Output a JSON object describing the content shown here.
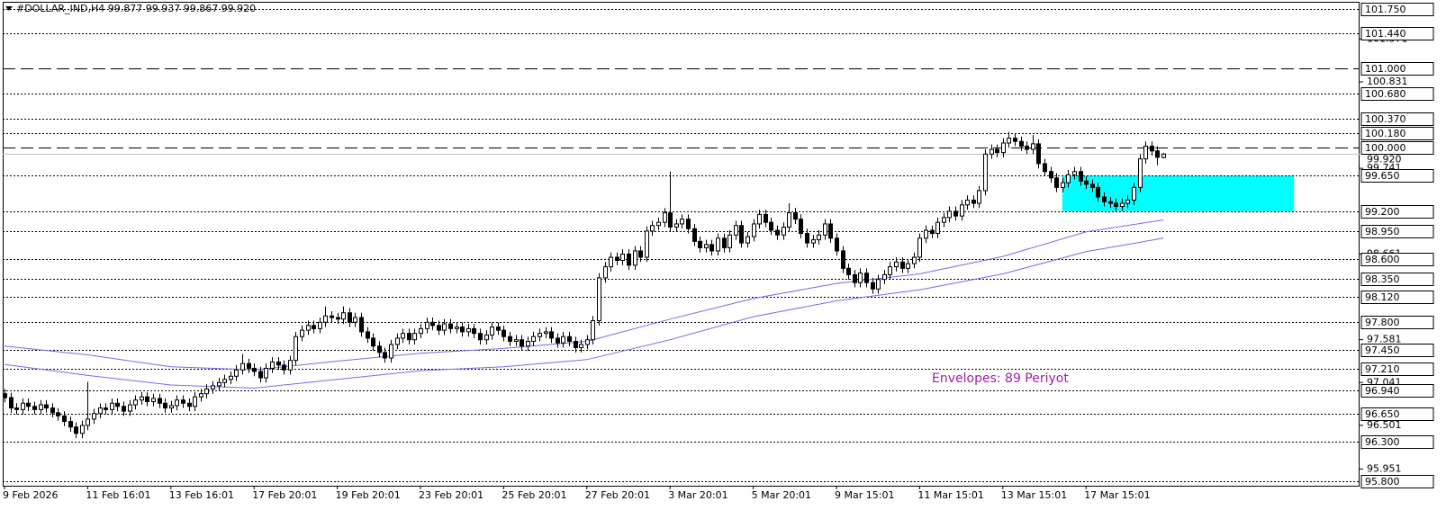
{
  "chart_data": {
    "type": "candlestick",
    "title": "#DOLLAR_IND,H4  99.877 99.937 99.867 99.920",
    "annotation": "Envelopes: 89 Periyot",
    "categories": [
      "9 Feb 2026",
      null,
      null,
      null,
      null,
      null,
      null,
      null,
      null,
      null,
      null,
      null,
      null,
      null,
      "11 Feb 16:01",
      null,
      null,
      null,
      null,
      null,
      null,
      null,
      null,
      null,
      null,
      null,
      null,
      null,
      "13 Feb 16:01",
      null,
      null,
      null,
      null,
      null,
      null,
      null,
      null,
      null,
      null,
      null,
      null,
      null,
      "17 Feb 20:01",
      null,
      null,
      null,
      null,
      null,
      null,
      null,
      null,
      null,
      null,
      null,
      null,
      null,
      "19 Feb 20:01",
      null,
      null,
      null,
      null,
      null,
      null,
      null,
      null,
      null,
      null,
      null,
      null,
      null,
      "23 Feb 20:01",
      null,
      null,
      null,
      null,
      null,
      null,
      null,
      null,
      null,
      null,
      null,
      null,
      null,
      "25 Feb 20:01",
      null,
      null,
      null,
      null,
      null,
      null,
      null,
      null,
      null,
      null,
      null,
      null,
      null,
      "27 Feb 20:01",
      null,
      null,
      null,
      null,
      null,
      null,
      null,
      null,
      null,
      null,
      null,
      null,
      null,
      "3 Mar 20:01",
      null,
      null,
      null,
      null,
      null,
      null,
      null,
      null,
      null,
      null,
      null,
      null,
      null,
      "5 Mar 20:01",
      null,
      null,
      null,
      null,
      null,
      null,
      null,
      null,
      null,
      null,
      null,
      null,
      null,
      "9 Mar 15:01",
      null,
      null,
      null,
      null,
      null,
      null,
      null,
      null,
      null,
      null,
      null,
      null,
      null,
      "11 Mar 15:01",
      null,
      null,
      null,
      null,
      null,
      null,
      null,
      null,
      null,
      null,
      null,
      null,
      null,
      "13 Mar 15:01",
      null,
      null,
      null,
      null,
      null,
      null,
      null,
      null,
      null,
      null,
      null,
      null,
      null,
      "17 Mar 15:01",
      null,
      null,
      null,
      null,
      null,
      null,
      null,
      null,
      null,
      null,
      null,
      null,
      null
    ],
    "open": [
      96.9,
      96.85,
      96.72,
      96.7,
      96.78,
      96.74,
      96.7,
      96.76,
      96.72,
      96.66,
      96.62,
      96.55,
      96.48,
      96.4,
      96.5,
      96.58,
      96.65,
      96.72,
      96.7,
      96.78,
      96.74,
      96.68,
      96.76,
      96.82,
      96.86,
      96.8,
      96.84,
      96.78,
      96.72,
      96.75,
      96.82,
      96.78,
      96.74,
      96.86,
      96.9,
      96.96,
      97.0,
      97.04,
      97.08,
      97.12,
      97.2,
      97.28,
      97.22,
      97.18,
      97.1,
      97.22,
      97.3,
      97.26,
      97.2,
      97.32,
      97.62,
      97.7,
      97.76,
      97.72,
      97.8,
      97.88,
      97.86,
      97.84,
      97.92,
      97.8,
      97.86,
      97.68,
      97.6,
      97.5,
      97.42,
      97.35,
      97.52,
      97.6,
      97.66,
      97.58,
      97.66,
      97.72,
      97.8,
      97.76,
      97.7,
      97.78,
      97.72,
      97.74,
      97.68,
      97.72,
      97.66,
      97.58,
      97.64,
      97.74,
      97.7,
      97.62,
      97.56,
      97.58,
      97.5,
      97.56,
      97.62,
      97.66,
      97.68,
      97.6,
      97.54,
      97.62,
      97.56,
      97.48,
      97.52,
      97.58,
      97.82,
      98.36,
      98.5,
      98.62,
      98.58,
      98.66,
      98.52,
      98.7,
      98.62,
      98.95,
      99.02,
      99.06,
      99.18,
      99.0,
      99.04,
      99.1,
      98.98,
      98.82,
      98.74,
      98.78,
      98.7,
      98.86,
      98.74,
      98.9,
      99.02,
      98.8,
      98.88,
      99.04,
      99.16,
      99.06,
      98.96,
      98.9,
      99.0,
      99.18,
      99.1,
      98.92,
      98.8,
      98.84,
      98.9,
      99.04,
      98.86,
      98.7,
      98.48,
      98.4,
      98.3,
      98.42,
      98.3,
      98.22,
      98.34,
      98.4,
      98.5,
      98.56,
      98.48,
      98.54,
      98.62,
      98.86,
      98.96,
      98.92,
      99.06,
      99.12,
      99.2,
      99.14,
      99.28,
      99.34,
      99.3,
      99.46,
      99.92,
      99.98,
      99.94,
      100.06,
      100.12,
      100.08,
      100.02,
      99.98,
      100.05,
      99.8,
      99.7,
      99.62,
      99.5,
      99.56,
      99.66,
      99.7,
      99.58,
      99.54,
      99.5,
      99.38,
      99.32,
      99.3,
      99.26,
      99.3,
      99.34,
      99.5,
      99.86,
      100.02,
      99.96,
      99.877
    ],
    "high": [
      96.96,
      96.91,
      96.78,
      96.84,
      96.84,
      96.8,
      96.82,
      96.82,
      96.78,
      96.72,
      96.68,
      96.61,
      96.54,
      96.56,
      97.05,
      96.71,
      96.78,
      96.78,
      96.84,
      96.84,
      96.8,
      96.82,
      96.88,
      96.92,
      96.92,
      96.9,
      96.9,
      96.84,
      96.81,
      96.88,
      96.88,
      96.84,
      96.92,
      96.96,
      97.02,
      97.06,
      97.1,
      97.14,
      97.18,
      97.26,
      97.4,
      97.34,
      97.28,
      97.24,
      97.28,
      97.36,
      97.36,
      97.32,
      97.38,
      97.68,
      97.76,
      97.82,
      97.82,
      97.86,
      98.0,
      97.94,
      97.92,
      98.0,
      97.98,
      97.92,
      97.92,
      97.74,
      97.66,
      97.56,
      97.48,
      97.58,
      97.66,
      97.72,
      97.72,
      97.72,
      97.78,
      97.86,
      97.86,
      97.82,
      97.84,
      97.84,
      97.8,
      97.8,
      97.78,
      97.78,
      97.72,
      97.7,
      97.8,
      97.8,
      97.76,
      97.68,
      97.64,
      97.64,
      97.62,
      97.68,
      97.72,
      97.74,
      97.74,
      97.66,
      97.68,
      97.68,
      97.62,
      97.58,
      97.64,
      97.88,
      98.42,
      98.56,
      98.68,
      98.68,
      98.72,
      98.72,
      98.76,
      98.76,
      99.01,
      99.08,
      99.12,
      99.24,
      99.7,
      99.1,
      99.16,
      99.16,
      99.04,
      98.88,
      98.84,
      98.84,
      98.92,
      98.92,
      98.96,
      99.08,
      99.08,
      98.94,
      99.1,
      99.22,
      99.22,
      99.12,
      99.02,
      99.06,
      99.3,
      99.24,
      99.16,
      98.98,
      98.9,
      98.96,
      99.1,
      99.1,
      98.92,
      98.76,
      98.54,
      98.46,
      98.48,
      98.48,
      98.36,
      98.4,
      98.46,
      98.56,
      98.62,
      98.62,
      98.6,
      98.68,
      98.92,
      99.02,
      99.02,
      99.12,
      99.18,
      99.26,
      99.26,
      99.34,
      99.4,
      99.4,
      99.52,
      99.98,
      100.04,
      100.04,
      100.12,
      100.2,
      100.18,
      100.14,
      100.08,
      100.16,
      100.11,
      99.86,
      99.76,
      99.68,
      99.62,
      99.72,
      99.76,
      99.76,
      99.64,
      99.6,
      99.56,
      99.44,
      99.38,
      99.36,
      99.36,
      99.4,
      99.56,
      99.92,
      100.08,
      100.08,
      100.02,
      99.937
    ],
    "low": [
      96.79,
      96.66,
      96.64,
      96.64,
      96.68,
      96.64,
      96.64,
      96.66,
      96.6,
      96.56,
      96.49,
      96.42,
      96.34,
      96.34,
      96.44,
      96.52,
      96.59,
      96.64,
      96.64,
      96.68,
      96.62,
      96.62,
      96.7,
      96.76,
      96.74,
      96.74,
      96.72,
      96.66,
      96.66,
      96.69,
      96.72,
      96.68,
      96.68,
      96.8,
      96.84,
      96.9,
      96.94,
      96.98,
      97.02,
      97.06,
      97.14,
      97.16,
      97.12,
      97.04,
      97.04,
      97.16,
      97.2,
      97.14,
      97.14,
      97.26,
      97.56,
      97.64,
      97.66,
      97.66,
      97.74,
      97.8,
      97.78,
      97.78,
      97.74,
      97.74,
      97.62,
      97.54,
      97.44,
      97.36,
      97.29,
      97.29,
      97.46,
      97.54,
      97.52,
      97.52,
      97.6,
      97.66,
      97.7,
      97.64,
      97.64,
      97.66,
      97.66,
      97.62,
      97.62,
      97.6,
      97.52,
      97.52,
      97.58,
      97.64,
      97.56,
      97.5,
      97.5,
      97.44,
      97.44,
      97.5,
      97.56,
      97.6,
      97.54,
      97.48,
      97.48,
      97.5,
      97.42,
      97.42,
      97.46,
      97.52,
      97.76,
      98.3,
      98.44,
      98.52,
      98.52,
      98.46,
      98.46,
      98.56,
      98.56,
      98.89,
      98.96,
      99.0,
      98.94,
      98.94,
      98.98,
      98.92,
      98.76,
      98.68,
      98.68,
      98.64,
      98.64,
      98.68,
      98.68,
      98.84,
      98.74,
      98.74,
      98.82,
      98.98,
      99.0,
      98.9,
      98.84,
      98.84,
      98.94,
      99.04,
      98.86,
      98.74,
      98.74,
      98.78,
      98.84,
      98.8,
      98.64,
      98.42,
      98.34,
      98.24,
      98.24,
      98.24,
      98.16,
      98.16,
      98.28,
      98.34,
      98.44,
      98.42,
      98.42,
      98.48,
      98.56,
      98.8,
      98.86,
      98.86,
      99.0,
      99.06,
      99.08,
      99.08,
      99.22,
      99.24,
      99.24,
      99.4,
      99.86,
      99.88,
      99.88,
      100.0,
      100.02,
      99.96,
      99.92,
      99.92,
      99.74,
      99.64,
      99.56,
      99.44,
      99.44,
      99.5,
      99.6,
      99.52,
      99.48,
      99.44,
      99.32,
      99.26,
      99.24,
      99.2,
      99.2,
      99.24,
      99.28,
      99.44,
      99.8,
      99.9,
      99.78,
      99.867
    ],
    "close": [
      96.85,
      96.72,
      96.7,
      96.78,
      96.74,
      96.7,
      96.76,
      96.72,
      96.66,
      96.62,
      96.55,
      96.48,
      96.4,
      96.5,
      96.58,
      96.65,
      96.72,
      96.7,
      96.78,
      96.74,
      96.68,
      96.76,
      96.82,
      96.86,
      96.8,
      96.84,
      96.78,
      96.72,
      96.75,
      96.82,
      96.78,
      96.74,
      96.86,
      96.9,
      96.96,
      97.0,
      97.04,
      97.08,
      97.12,
      97.2,
      97.28,
      97.22,
      97.18,
      97.1,
      97.22,
      97.3,
      97.26,
      97.2,
      97.32,
      97.62,
      97.7,
      97.76,
      97.72,
      97.8,
      97.88,
      97.86,
      97.84,
      97.92,
      97.8,
      97.86,
      97.68,
      97.6,
      97.5,
      97.42,
      97.35,
      97.52,
      97.6,
      97.66,
      97.58,
      97.66,
      97.72,
      97.8,
      97.76,
      97.7,
      97.78,
      97.72,
      97.74,
      97.68,
      97.72,
      97.66,
      97.58,
      97.64,
      97.74,
      97.7,
      97.62,
      97.56,
      97.58,
      97.5,
      97.56,
      97.62,
      97.66,
      97.68,
      97.6,
      97.54,
      97.62,
      97.56,
      97.48,
      97.52,
      97.58,
      97.82,
      98.36,
      98.5,
      98.62,
      98.58,
      98.66,
      98.52,
      98.7,
      98.62,
      98.95,
      99.02,
      99.06,
      99.18,
      99.0,
      99.04,
      99.1,
      98.98,
      98.82,
      98.74,
      98.78,
      98.7,
      98.86,
      98.74,
      98.9,
      99.02,
      98.8,
      98.88,
      99.04,
      99.16,
      99.06,
      98.96,
      98.9,
      99.0,
      99.18,
      99.1,
      98.92,
      98.8,
      98.84,
      98.9,
      99.04,
      98.86,
      98.7,
      98.48,
      98.4,
      98.3,
      98.42,
      98.3,
      98.22,
      98.34,
      98.4,
      98.5,
      98.56,
      98.48,
      98.54,
      98.62,
      98.86,
      98.96,
      98.92,
      99.06,
      99.12,
      99.2,
      99.14,
      99.28,
      99.34,
      99.3,
      99.46,
      99.92,
      99.98,
      99.94,
      100.06,
      100.12,
      100.08,
      100.02,
      99.98,
      100.05,
      99.8,
      99.7,
      99.62,
      99.5,
      99.56,
      99.66,
      99.7,
      99.58,
      99.54,
      99.5,
      99.38,
      99.32,
      99.3,
      99.26,
      99.3,
      99.34,
      99.5,
      99.86,
      100.02,
      99.96,
      99.88,
      99.92
    ],
    "up_color": "#ffffff",
    "down_color": "#000000",
    "ylim": [
      95.74,
      101.84
    ],
    "yticks": [
      101.371,
      100.831,
      99.741,
      98.661,
      97.581,
      97.041,
      96.501,
      95.951
    ],
    "levels": [
      {
        "value": 101.75,
        "label": "101.750",
        "style": "dot"
      },
      {
        "value": 101.44,
        "label": "101.440",
        "style": "dot"
      },
      {
        "value": 101.0,
        "label": "101.000",
        "style": "dash"
      },
      {
        "value": 100.68,
        "label": "100.680",
        "style": "dot"
      },
      {
        "value": 100.37,
        "label": "100.370",
        "style": "dot"
      },
      {
        "value": 100.18,
        "label": "100.180",
        "style": "dot"
      },
      {
        "value": 100.0,
        "label": "100.000",
        "style": "dash"
      },
      {
        "value": 99.65,
        "label": "99.650",
        "style": "dot"
      },
      {
        "value": 99.2,
        "label": "99.200",
        "style": "dot"
      },
      {
        "value": 98.95,
        "label": "98.950",
        "style": "dot"
      },
      {
        "value": 98.6,
        "label": "98.600",
        "style": "dot"
      },
      {
        "value": 98.35,
        "label": "98.350",
        "style": "dot"
      },
      {
        "value": 98.12,
        "label": "98.120",
        "style": "dot"
      },
      {
        "value": 97.8,
        "label": "97.800",
        "style": "dot"
      },
      {
        "value": 97.45,
        "label": "97.450",
        "style": "dot"
      },
      {
        "value": 97.21,
        "label": "97.210",
        "style": "dot"
      },
      {
        "value": 96.94,
        "label": "96.940",
        "style": "dot"
      },
      {
        "value": 96.65,
        "label": "96.650",
        "style": "dot"
      },
      {
        "value": 96.3,
        "label": "96.300",
        "style": "dot"
      },
      {
        "value": 95.8,
        "label": "95.800",
        "style": "dot"
      }
    ],
    "current_price": {
      "value": 99.92,
      "label": "99.920"
    },
    "envelope": {
      "color": "#7b68ee",
      "x": [
        0,
        14,
        28,
        42,
        56,
        70,
        84,
        98,
        112,
        126,
        140,
        154,
        168,
        182,
        195
      ],
      "upper": [
        97.5,
        97.39,
        97.24,
        97.2,
        97.31,
        97.41,
        97.47,
        97.56,
        97.84,
        98.1,
        98.29,
        98.41,
        98.63,
        98.94,
        99.09
      ],
      "lower": [
        97.27,
        97.13,
        97.01,
        96.97,
        97.08,
        97.19,
        97.24,
        97.33,
        97.58,
        97.87,
        98.07,
        98.21,
        98.41,
        98.69,
        98.86
      ]
    },
    "zone": {
      "x": [
        178,
        217
      ],
      "y": [
        99.2,
        99.65
      ],
      "color": "#00ffff"
    },
    "grid": false
  }
}
